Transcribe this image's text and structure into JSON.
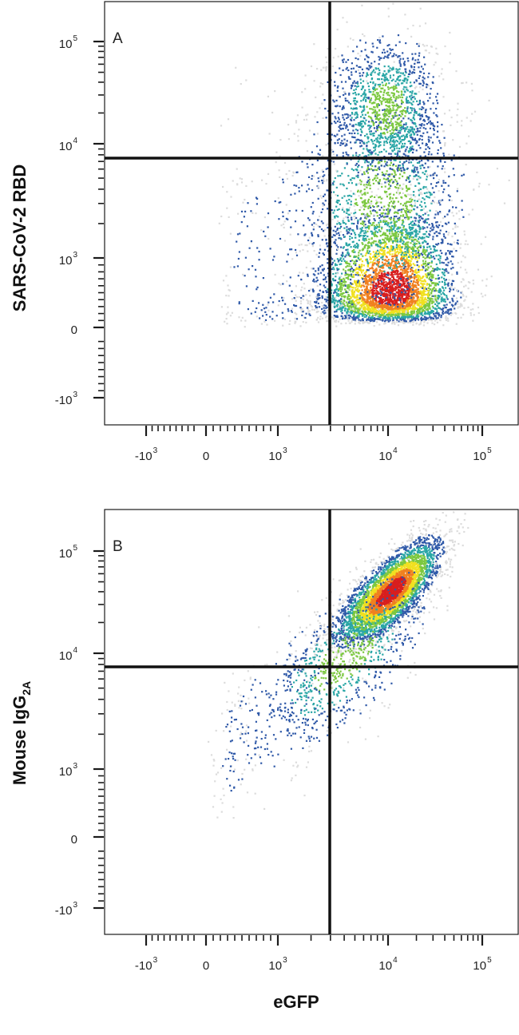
{
  "chart_data": [
    {
      "type": "scatter",
      "panel_label": "A",
      "ylabel": "SARS-CoV-2 RBD",
      "xlabel": "eGFP",
      "scale": "biexponential",
      "x_ticks": [
        {
          "base": "-10",
          "exp": "3",
          "value": -1000
        },
        {
          "base": "0",
          "exp": "",
          "value": 0
        },
        {
          "base": "10",
          "exp": "3",
          "value": 1000
        },
        {
          "base": "10",
          "exp": "4",
          "value": 10000
        },
        {
          "base": "10",
          "exp": "5",
          "value": 100000
        }
      ],
      "y_ticks": [
        {
          "base": "10",
          "exp": "5",
          "value": 100000
        },
        {
          "base": "10",
          "exp": "4",
          "value": 10000
        },
        {
          "base": "10",
          "exp": "3",
          "value": 1000
        },
        {
          "base": "0",
          "exp": "",
          "value": 0
        },
        {
          "base": "-10",
          "exp": "3",
          "value": -1000
        }
      ],
      "quadrant_gate": {
        "x": 3000,
        "y": 8000
      },
      "clusters": [
        {
          "x_center": 11000,
          "y_center": 520,
          "x_spread_decades": 0.33,
          "y_spread_decades": 0.35,
          "events": 3800,
          "density": "high"
        },
        {
          "x_center": 9500,
          "y_center": 3200,
          "x_spread_decades": 0.4,
          "y_spread_decades": 0.5,
          "events": 1400,
          "density": "medium"
        },
        {
          "x_center": 10000,
          "y_center": 22000,
          "x_spread_decades": 0.28,
          "y_spread_decades": 0.35,
          "events": 1300,
          "density": "medium"
        },
        {
          "x_center": 1100,
          "y_center": 700,
          "x_spread_decades": 0.35,
          "y_spread_decades": 0.6,
          "events": 250,
          "density": "low"
        }
      ]
    },
    {
      "type": "scatter",
      "panel_label": "B",
      "ylabel": "Mouse IgG",
      "ylabel_sub": "2A",
      "xlabel": "eGFP",
      "scale": "biexponential",
      "x_ticks": [
        {
          "base": "-10",
          "exp": "3",
          "value": -1000
        },
        {
          "base": "0",
          "exp": "",
          "value": 0
        },
        {
          "base": "10",
          "exp": "3",
          "value": 1000
        },
        {
          "base": "10",
          "exp": "4",
          "value": 10000
        },
        {
          "base": "10",
          "exp": "5",
          "value": 100000
        }
      ],
      "y_ticks": [
        {
          "base": "10",
          "exp": "5",
          "value": 100000
        },
        {
          "base": "10",
          "exp": "4",
          "value": 10000
        },
        {
          "base": "10",
          "exp": "3",
          "value": 1000
        },
        {
          "base": "0",
          "exp": "",
          "value": 0
        },
        {
          "base": "-10",
          "exp": "3",
          "value": -1000
        }
      ],
      "quadrant_gate": {
        "x": 3000,
        "y": 8000
      },
      "clusters": [
        {
          "x_center": 11000,
          "y_center": 40000,
          "x_spread_decades": 0.25,
          "y_spread_decades": 0.25,
          "correlation": 0.75,
          "events": 4200,
          "density": "high"
        },
        {
          "x_center": 4000,
          "y_center": 9000,
          "x_spread_decades": 0.4,
          "y_spread_decades": 0.4,
          "correlation": 0.7,
          "events": 900,
          "density": "medium"
        },
        {
          "x_center": 800,
          "y_center": 2500,
          "x_spread_decades": 0.4,
          "y_spread_decades": 0.4,
          "correlation": 0.6,
          "events": 200,
          "density": "low"
        }
      ]
    }
  ],
  "colors": {
    "axis": "#1a1a1a",
    "gate": "#111111",
    "density_scale": [
      "#dcdcdc",
      "#2f59a8",
      "#2aa6a6",
      "#7cc840",
      "#f0e020",
      "#f08020",
      "#d81e1e"
    ]
  }
}
